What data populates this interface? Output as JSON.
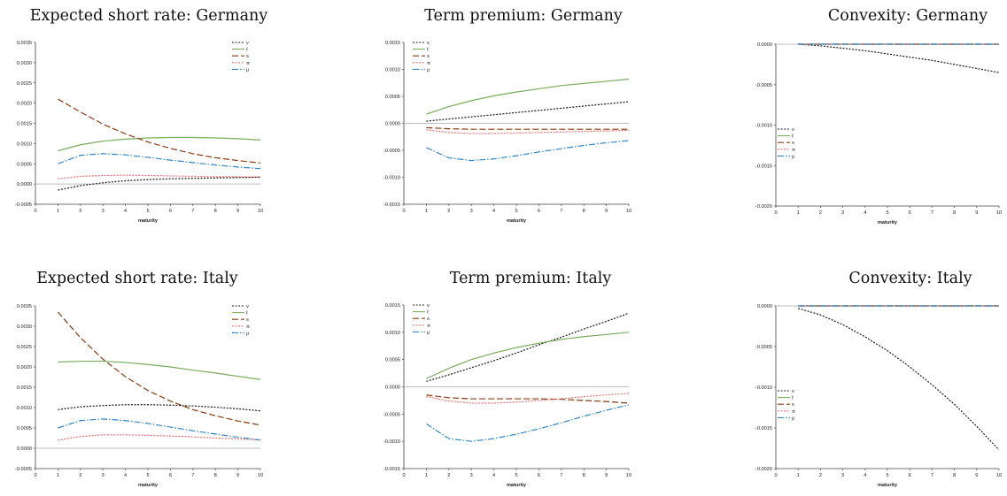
{
  "chart_data": [
    {
      "type": "line",
      "title": "Expected short rate: Germany",
      "xlabel": "maturity",
      "ylabel": "",
      "xlim": [
        0,
        10
      ],
      "ylim": [
        -0.0005,
        0.0035
      ],
      "yticks": [
        "-0.0005",
        "0.0000",
        "0.0005",
        "0.0010",
        "0.0015",
        "0.0020",
        "0.0025",
        "0.0030",
        "0.0035"
      ],
      "xticks": [
        "0",
        "1",
        "2",
        "3",
        "4",
        "5",
        "6",
        "7",
        "8",
        "9",
        "10"
      ],
      "legend_position": "top-right",
      "x": [
        1,
        2,
        3,
        4,
        5,
        6,
        7,
        8,
        9,
        10
      ],
      "series": [
        {
          "name": "v",
          "values": [
            -0.00015,
            -4e-05,
            3e-05,
            8e-05,
            0.00011,
            0.00013,
            0.00014,
            0.00015,
            0.00016,
            0.00017
          ]
        },
        {
          "name": "ℓ",
          "values": [
            0.00082,
            0.00097,
            0.00106,
            0.00111,
            0.00114,
            0.00115,
            0.00115,
            0.00114,
            0.00112,
            0.00109
          ]
        },
        {
          "name": "s",
          "values": [
            0.0021,
            0.00178,
            0.00148,
            0.00124,
            0.00104,
            0.00088,
            0.00075,
            0.00065,
            0.00058,
            0.00052
          ]
        },
        {
          "name": "π",
          "values": [
            0.00013,
            0.00019,
            0.00021,
            0.00022,
            0.00021,
            0.0002,
            0.00019,
            0.00018,
            0.00018,
            0.00017
          ]
        },
        {
          "name": "μ",
          "values": [
            0.0005,
            0.00071,
            0.00075,
            0.00072,
            0.00066,
            0.00059,
            0.00053,
            0.00047,
            0.00042,
            0.00038
          ]
        }
      ]
    },
    {
      "type": "line",
      "title": "Term premium: Germany",
      "xlabel": "maturity",
      "ylabel": "",
      "xlim": [
        0,
        10
      ],
      "ylim": [
        -0.0015,
        0.0015
      ],
      "yticks": [
        "-0.0015",
        "-0.0010",
        "-0.0005",
        "0.0000",
        "0.0005",
        "0.0010",
        "0.0015"
      ],
      "xticks": [
        "0",
        "1",
        "2",
        "3",
        "4",
        "5",
        "6",
        "7",
        "8",
        "9",
        "10"
      ],
      "legend_position": "top-left",
      "x": [
        1,
        2,
        3,
        4,
        5,
        6,
        7,
        8,
        9,
        10
      ],
      "series": [
        {
          "name": "v",
          "values": [
            4e-05,
            8e-05,
            0.00012,
            0.00016,
            0.0002,
            0.00024,
            0.00028,
            0.00032,
            0.00036,
            0.0004
          ]
        },
        {
          "name": "ℓ",
          "values": [
            0.00017,
            0.00031,
            0.00042,
            0.00051,
            0.00058,
            0.00064,
            0.0007,
            0.00074,
            0.00078,
            0.00082
          ]
        },
        {
          "name": "s",
          "values": [
            -8e-05,
            -0.0001,
            -0.00011,
            -0.00011,
            -0.00011,
            -0.00011,
            -0.00011,
            -0.00011,
            -0.00011,
            -0.00011
          ]
        },
        {
          "name": "π",
          "values": [
            -0.00012,
            -0.00017,
            -0.00019,
            -0.00019,
            -0.00018,
            -0.00017,
            -0.00016,
            -0.00015,
            -0.00014,
            -0.00013
          ]
        },
        {
          "name": "μ",
          "values": [
            -0.00045,
            -0.00064,
            -0.00069,
            -0.00066,
            -0.0006,
            -0.00053,
            -0.00047,
            -0.00041,
            -0.00036,
            -0.00032
          ]
        }
      ]
    },
    {
      "type": "line",
      "title": "Convexity: Germany",
      "xlabel": "maturity",
      "ylabel": "",
      "xlim": [
        0,
        10
      ],
      "ylim": [
        -0.002,
        0.0
      ],
      "yticks": [
        "-0.0020",
        "-0.0015",
        "-0.0010",
        "-0.0005",
        "0.0000"
      ],
      "xticks": [
        "0",
        "1",
        "2",
        "3",
        "4",
        "5",
        "6",
        "7",
        "8",
        "9",
        "10"
      ],
      "legend_position": "left",
      "x": [
        1,
        2,
        3,
        4,
        5,
        6,
        7,
        8,
        9,
        10
      ],
      "series": [
        {
          "name": "v",
          "values": [
            0.0,
            -2e-05,
            -5e-05,
            -8e-05,
            -0.00012,
            -0.00016,
            -0.0002,
            -0.00025,
            -0.0003,
            -0.00035
          ]
        },
        {
          "name": "ℓ",
          "values": [
            0,
            0,
            0,
            0,
            0,
            0,
            0,
            0,
            0,
            0
          ]
        },
        {
          "name": "s",
          "values": [
            0,
            0,
            0,
            0,
            0,
            0,
            0,
            0,
            0,
            0
          ]
        },
        {
          "name": "π",
          "values": [
            0,
            0,
            0,
            0,
            0,
            0,
            0,
            0,
            0,
            0
          ]
        },
        {
          "name": "μ",
          "values": [
            0,
            0,
            0,
            0,
            0,
            0,
            0,
            0,
            0,
            0
          ]
        }
      ]
    },
    {
      "type": "line",
      "title": "Expected short rate: Italy",
      "xlabel": "maturity",
      "ylabel": "",
      "xlim": [
        0,
        10
      ],
      "ylim": [
        -0.0005,
        0.0035
      ],
      "yticks": [
        "-0.0005",
        "0.0000",
        "0.0005",
        "0.0010",
        "0.0015",
        "0.0020",
        "0.0025",
        "0.0030",
        "0.0035"
      ],
      "xticks": [
        "0",
        "1",
        "2",
        "3",
        "4",
        "5",
        "6",
        "7",
        "8",
        "9",
        "10"
      ],
      "legend_position": "top-right",
      "x": [
        1,
        2,
        3,
        4,
        5,
        6,
        7,
        8,
        9,
        10
      ],
      "series": [
        {
          "name": "v",
          "values": [
            0.00095,
            0.00102,
            0.00105,
            0.00107,
            0.00107,
            0.00106,
            0.00104,
            0.00101,
            0.00097,
            0.00092
          ]
        },
        {
          "name": "ℓ",
          "values": [
            0.00212,
            0.00214,
            0.00214,
            0.00211,
            0.00206,
            0.002,
            0.00192,
            0.00185,
            0.00177,
            0.00169
          ]
        },
        {
          "name": "s",
          "values": [
            0.00335,
            0.00272,
            0.00219,
            0.00176,
            0.00142,
            0.00116,
            0.00095,
            0.0008,
            0.00067,
            0.00057
          ]
        },
        {
          "name": "π",
          "values": [
            0.0002,
            0.00029,
            0.00033,
            0.00033,
            0.00032,
            0.0003,
            0.00028,
            0.00025,
            0.00023,
            0.00021
          ]
        },
        {
          "name": "μ",
          "values": [
            0.0005,
            0.00068,
            0.00072,
            0.00068,
            0.00061,
            0.00052,
            0.00043,
            0.00035,
            0.00027,
            0.0002
          ]
        }
      ]
    },
    {
      "type": "line",
      "title": "Term premium: Italy",
      "xlabel": "maturity",
      "ylabel": "",
      "xlim": [
        0,
        10
      ],
      "ylim": [
        -0.0015,
        0.0015
      ],
      "yticks": [
        "-0.0015",
        "-0.0010",
        "-0.0005",
        "0.0000",
        "0.0005",
        "0.0010",
        "0.0015"
      ],
      "xticks": [
        "0",
        "1",
        "2",
        "3",
        "4",
        "5",
        "6",
        "7",
        "8",
        "9",
        "10"
      ],
      "legend_position": "top-left",
      "x": [
        1,
        2,
        3,
        4,
        5,
        6,
        7,
        8,
        9,
        10
      ],
      "series": [
        {
          "name": "v",
          "values": [
            0.0001,
            0.00022,
            0.00035,
            0.00048,
            0.00062,
            0.00077,
            0.00091,
            0.00106,
            0.0012,
            0.00135
          ]
        },
        {
          "name": "ℓ",
          "values": [
            0.00015,
            0.00034,
            0.0005,
            0.00062,
            0.00072,
            0.0008,
            0.00087,
            0.00092,
            0.00096,
            0.001
          ]
        },
        {
          "name": "s",
          "values": [
            -0.00015,
            -0.0002,
            -0.00022,
            -0.00022,
            -0.00022,
            -0.00022,
            -0.00023,
            -0.00025,
            -0.00027,
            -0.0003
          ]
        },
        {
          "name": "π",
          "values": [
            -0.00018,
            -0.00026,
            -0.0003,
            -0.0003,
            -0.00028,
            -0.00025,
            -0.00022,
            -0.00018,
            -0.00015,
            -0.00012
          ]
        },
        {
          "name": "μ",
          "values": [
            -0.00068,
            -0.00095,
            -0.001,
            -0.00095,
            -0.00087,
            -0.00077,
            -0.00066,
            -0.00054,
            -0.00043,
            -0.00033
          ]
        }
      ]
    },
    {
      "type": "line",
      "title": "Convexity: Italy",
      "xlabel": "maturity",
      "ylabel": "",
      "xlim": [
        0,
        10
      ],
      "ylim": [
        -0.002,
        0.0
      ],
      "yticks": [
        "-0.0020",
        "-0.0015",
        "-0.0010",
        "-0.0005",
        "0.0000"
      ],
      "xticks": [
        "0",
        "1",
        "2",
        "3",
        "4",
        "5",
        "6",
        "7",
        "8",
        "9",
        "10"
      ],
      "legend_position": "left",
      "x": [
        1,
        2,
        3,
        4,
        5,
        6,
        7,
        8,
        9,
        10
      ],
      "series": [
        {
          "name": "v",
          "values": [
            -3e-05,
            -0.00011,
            -0.00023,
            -0.00038,
            -0.00055,
            -0.00075,
            -0.00097,
            -0.00121,
            -0.00148,
            -0.00177
          ]
        },
        {
          "name": "ℓ",
          "values": [
            0,
            0,
            0,
            0,
            0,
            0,
            0,
            0,
            0,
            0
          ]
        },
        {
          "name": "s",
          "values": [
            0,
            0,
            0,
            0,
            0,
            0,
            0,
            0,
            0,
            0
          ]
        },
        {
          "name": "π",
          "values": [
            0,
            0,
            0,
            0,
            0,
            0,
            0,
            0,
            0,
            0
          ]
        },
        {
          "name": "μ",
          "values": [
            0,
            0,
            0,
            0,
            0,
            0,
            0,
            0,
            0,
            0
          ]
        }
      ]
    }
  ],
  "styles": {
    "v": {
      "color": "#1a1a1a",
      "dash": "2,1.6"
    },
    "ℓ": {
      "color": "#77ad5c",
      "dash": ""
    },
    "s": {
      "color": "#8a3a10",
      "dash": "7,3"
    },
    "π": {
      "color": "#ee7070",
      "dash": "2,1.5"
    },
    "μ": {
      "color": "#2f86c8",
      "dash": "7,2,1.5,2"
    }
  },
  "zero_line_color": "#bdbdbd"
}
